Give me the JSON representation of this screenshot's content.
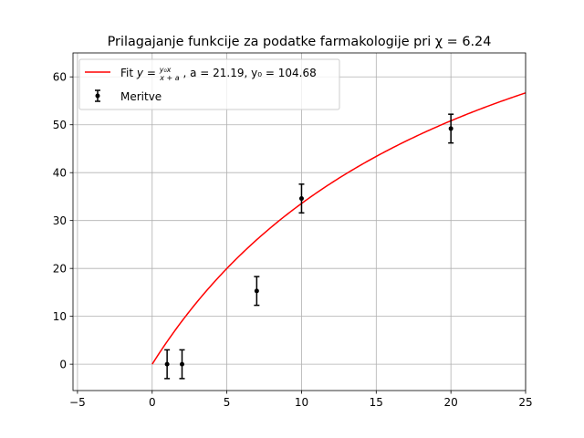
{
  "chart_data": {
    "type": "scatter",
    "title": "Prilagajanje funkcije za podatke farmakologije pri χ = 6.24",
    "xlabel": "",
    "ylabel": "",
    "xlim": [
      -5.3,
      25
    ],
    "ylim": [
      -5.5,
      65
    ],
    "xticks": [
      -5,
      0,
      5,
      10,
      15,
      20,
      25
    ],
    "yticks": [
      0,
      10,
      20,
      30,
      40,
      50,
      60
    ],
    "xtick_labels": [
      "−5",
      "0",
      "5",
      "10",
      "15",
      "20",
      "25"
    ],
    "ytick_labels": [
      "0",
      "10",
      "20",
      "30",
      "40",
      "50",
      "60"
    ],
    "grid": true,
    "legend_position": "top-left",
    "series": [
      {
        "name": "Meritve",
        "kind": "errorbar",
        "color": "#000000",
        "x": [
          1,
          2,
          7,
          10,
          20
        ],
        "y": [
          0.0,
          0.0,
          15.3,
          34.6,
          49.2
        ],
        "yerr": [
          3.0,
          3.0,
          3.0,
          3.0,
          3.0
        ]
      },
      {
        "name": "Fit y = y₀x/(x+a), a = 21.19, y₀ = 104.68",
        "kind": "fit_line",
        "color": "#ff0000",
        "function": "y0*x/(x+a)",
        "params": {
          "a": 21.19,
          "y0": 104.68
        },
        "x_range": [
          0,
          25
        ]
      }
    ]
  },
  "legend": {
    "fit_prefix": "Fit",
    "fit_params": ", a = 21.19, y₀ = 104.68",
    "data_label": "Meritve"
  },
  "colors": {
    "fit": "#ff0000",
    "points": "#000000",
    "grid": "#b0b0b0",
    "axes": "#000000"
  }
}
